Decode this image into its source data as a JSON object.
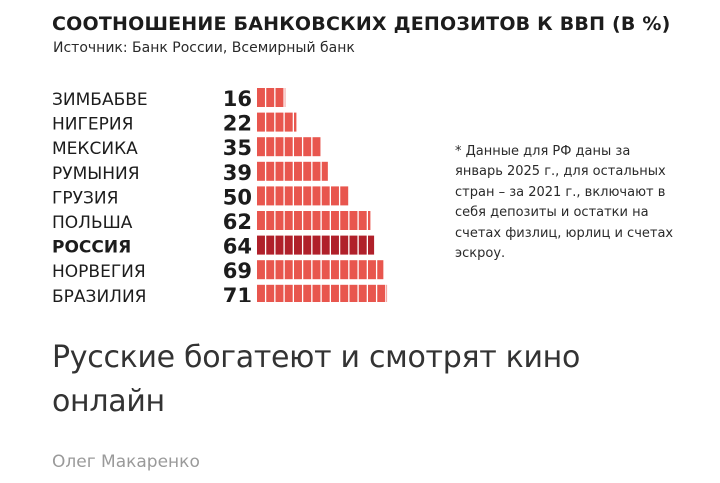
{
  "chart_data": {
    "type": "bar",
    "orientation": "horizontal",
    "title": "СООТНОШЕНИЕ БАНКОВСКИХ ДЕПОЗИТОВ К ВВП (В %)",
    "source": "Источник: Банк России, Всемирный банк",
    "categories": [
      "ЗИМБАБВЕ",
      "НИГЕРИЯ",
      "МЕКСИКА",
      "РУМЫНИЯ",
      "ГРУЗИЯ",
      "ПОЛЬША",
      "РОССИЯ",
      "НОРВЕГИЯ",
      "БРАЗИЛИЯ"
    ],
    "values": [
      16,
      22,
      35,
      39,
      50,
      62,
      64,
      69,
      71
    ],
    "highlight": "РОССИЯ",
    "colors": {
      "bar": "#e8564e",
      "highlight": "#b0202a",
      "text": "#1c1c1c"
    },
    "footnote": "* Данные для РФ даны за\nянварь 2025 г., для остальных\nстран – за 2021 г., включают в\nсебя депозиты и остатки на\nсчетах физлиц, юрлиц и счетах\nэскроу."
  },
  "article": {
    "headline": "Русские богатеют и смотрят кино онлайн",
    "author": "Олег Макаренко"
  }
}
